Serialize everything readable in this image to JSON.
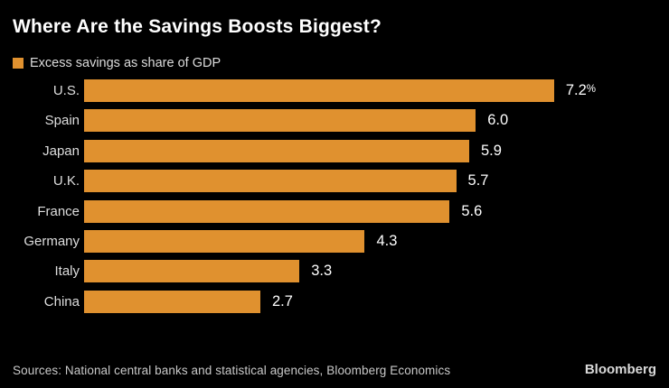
{
  "title": "Where Are the Savings Boosts Biggest?",
  "legend": {
    "label": "Excess savings as share of GDP",
    "swatch_color": "#E0912F"
  },
  "chart_data": {
    "type": "bar",
    "orientation": "horizontal",
    "title": "Where Are the Savings Boosts Biggest?",
    "xlabel": "",
    "ylabel": "",
    "categories": [
      "U.S.",
      "Spain",
      "Japan",
      "U.K.",
      "France",
      "Germany",
      "Italy",
      "China"
    ],
    "values": [
      7.2,
      6.0,
      5.9,
      5.7,
      5.6,
      4.3,
      3.3,
      2.7
    ],
    "value_labels": [
      "7.2",
      "6.0",
      "5.9",
      "5.7",
      "5.6",
      "4.3",
      "3.3",
      "2.7"
    ],
    "value_suffixes": [
      "%",
      "",
      "",
      "",
      "",
      "",
      "",
      ""
    ],
    "xlim": [
      0,
      7.2
    ],
    "grid": false,
    "legend_entries": [
      "Excess savings as share of GDP"
    ],
    "legend_position": "top-left",
    "bar_color": "#E0912F",
    "background_color": "#000000"
  },
  "footer": {
    "source": "Sources: National central banks and statistical agencies, Bloomberg Economics",
    "brand": "Bloomberg"
  },
  "colors": {
    "background": "#000000",
    "bar": "#E0912F",
    "title_text": "#FFFFFF",
    "category_text": "#DEDEDE",
    "value_text": "#FFFFFF",
    "source_text": "#C9C9C9"
  }
}
